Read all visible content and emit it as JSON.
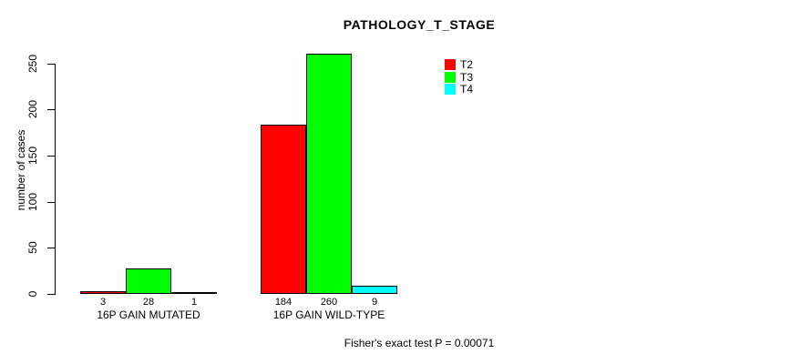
{
  "chart_data": {
    "type": "bar",
    "title": "PATHOLOGY_T_STAGE",
    "ylabel": "number of cases",
    "xlabel": "",
    "ylim": [
      0,
      260
    ],
    "yticks": [
      0,
      50,
      100,
      150,
      200,
      250
    ],
    "grid": false,
    "legend_position": "top-right-inside",
    "bar_value_labels": true,
    "categories": [
      "16P GAIN MUTATED",
      "16P GAIN WILD-TYPE"
    ],
    "series": [
      {
        "name": "T2",
        "color": "#FF0000",
        "values": [
          3,
          184
        ]
      },
      {
        "name": "T3",
        "color": "#00FF00",
        "values": [
          28,
          260
        ]
      },
      {
        "name": "T4",
        "color": "#00FFFF",
        "values": [
          1,
          9
        ]
      }
    ],
    "annotation": "Fisher's exact test P = 0.00071"
  }
}
